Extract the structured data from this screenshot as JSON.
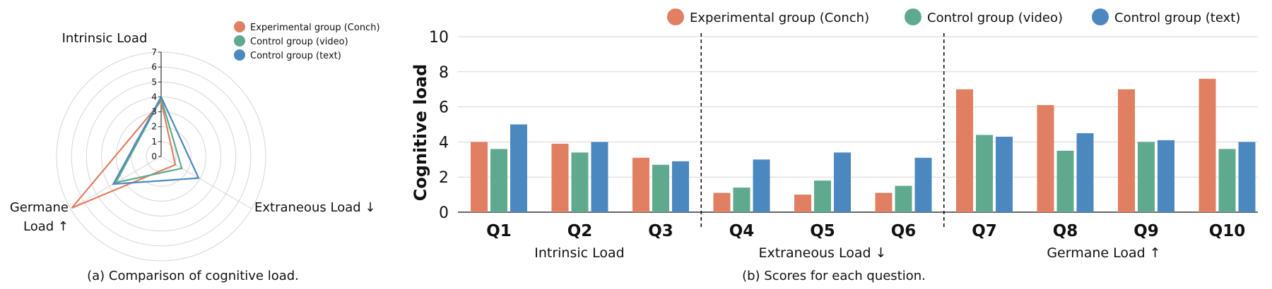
{
  "colors": {
    "conch": "#E07F62",
    "video": "#5FAA8E",
    "text": "#4C88C0",
    "grid": "#d6d6d6"
  },
  "chart_data": [
    {
      "type": "radar",
      "caption": "(a) Comparison of cognitive load.",
      "axes": [
        "Intrinsic Load",
        "Extraneous Load ↓",
        "Germane Load ↑"
      ],
      "axis_label_parts": {
        "germane_line1": "Germane",
        "germane_line2": "Load ↑"
      },
      "rlim": [
        0,
        7
      ],
      "ticks": [
        "0",
        "1",
        "2",
        "3",
        "4",
        "5",
        "6",
        "7"
      ],
      "legend": [
        "Experimental group (Conch)",
        "Control group (video)",
        "Control group (text)"
      ],
      "series": [
        {
          "name": "Experimental group (Conch)",
          "values": [
            3.7,
            1.1,
            6.9
          ]
        },
        {
          "name": "Control group (video)",
          "values": [
            3.9,
            1.6,
            3.5
          ]
        },
        {
          "name": "Control group (text)",
          "values": [
            4.0,
            2.9,
            3.7
          ]
        }
      ]
    },
    {
      "type": "bar",
      "caption": "(b) Scores for each question.",
      "ylabel": "Cognitive load",
      "ylim": [
        0,
        10
      ],
      "yticks": [
        "0",
        "2",
        "4",
        "6",
        "8",
        "10"
      ],
      "categories": [
        "Q1",
        "Q2",
        "Q3",
        "Q4",
        "Q5",
        "Q6",
        "Q7",
        "Q8",
        "Q9",
        "Q10"
      ],
      "groups": [
        "Intrinsic Load",
        "Extraneous Load ↓",
        "Germane Load ↑"
      ],
      "legend": [
        "Experimental group (Conch)",
        "Control group (video)",
        "Control group (text)"
      ],
      "series": [
        {
          "name": "Experimental group (Conch)",
          "values": [
            4.0,
            3.9,
            3.1,
            1.1,
            1.0,
            1.1,
            7.0,
            6.1,
            7.0,
            7.6
          ]
        },
        {
          "name": "Control group (video)",
          "values": [
            3.6,
            3.4,
            2.7,
            1.4,
            1.8,
            1.5,
            4.4,
            3.5,
            4.0,
            3.6
          ]
        },
        {
          "name": "Control group (text)",
          "values": [
            5.0,
            4.0,
            2.9,
            3.0,
            3.4,
            3.1,
            4.3,
            4.5,
            4.1,
            4.0
          ]
        }
      ]
    }
  ]
}
